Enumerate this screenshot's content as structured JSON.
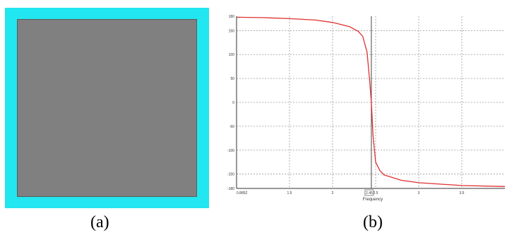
{
  "captions": {
    "a": "(a)",
    "b": "(b)"
  },
  "panel_a": {
    "frame_color": "#22e6f0",
    "fill_color": "#808080"
  },
  "chart_data": {
    "type": "line",
    "title": "",
    "xlabel": "Frequency",
    "ylabel": "",
    "xlim": [
      0.8852,
      4.0
    ],
    "ylim": [
      -180,
      180
    ],
    "grid": true,
    "x_ticks": [
      {
        "value": 0.8852,
        "label": "0.8852"
      },
      {
        "value": 1.5,
        "label": "1.5"
      },
      {
        "value": 2.0,
        "label": "2"
      },
      {
        "value": 2.45,
        "label": "2.45"
      },
      {
        "value": 2.5,
        "label": "2.5"
      },
      {
        "value": 3.0,
        "label": "3"
      },
      {
        "value": 3.5,
        "label": "3.5"
      }
    ],
    "y_ticks": [
      {
        "value": 180,
        "label": "180"
      },
      {
        "value": 150,
        "label": "150"
      },
      {
        "value": 100,
        "label": "100"
      },
      {
        "value": 50,
        "label": "50"
      },
      {
        "value": 0,
        "label": "0"
      },
      {
        "value": -50,
        "label": "-50"
      },
      {
        "value": -100,
        "label": "-100"
      },
      {
        "value": -150,
        "label": "-150"
      },
      {
        "value": -180,
        "label": "-180"
      }
    ],
    "marker_x": 2.45,
    "series": [
      {
        "color": "#e03030",
        "points": [
          [
            0.8852,
            178
          ],
          [
            1.2,
            177
          ],
          [
            1.5,
            175
          ],
          [
            1.8,
            172
          ],
          [
            2.0,
            167
          ],
          [
            2.2,
            158
          ],
          [
            2.3,
            148
          ],
          [
            2.35,
            138
          ],
          [
            2.4,
            105
          ],
          [
            2.43,
            45
          ],
          [
            2.45,
            0
          ],
          [
            2.47,
            -70
          ],
          [
            2.5,
            -125
          ],
          [
            2.55,
            -143
          ],
          [
            2.6,
            -152
          ],
          [
            2.8,
            -163
          ],
          [
            3.0,
            -168
          ],
          [
            3.5,
            -174
          ],
          [
            4.0,
            -176
          ]
        ]
      }
    ]
  }
}
